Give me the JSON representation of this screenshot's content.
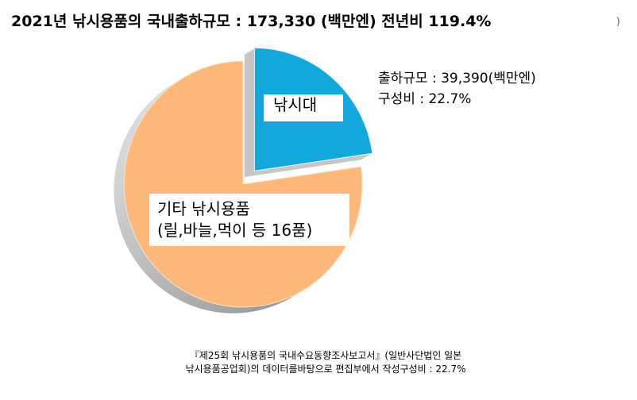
{
  "title": "2021년 낚시용품의 국내출하규모 : 173,330 (백만엔) 전년비 119.4%",
  "edge_mark": ")",
  "annotation": {
    "line1": "출하규모 : 39,390(백만엔)",
    "line2": "구성비 : 22.7%"
  },
  "footnote": {
    "line1": "『제25회  낚시용품의 국내수요동향조사보고서』(일반사단법인 일본",
    "line2": "낚시용품공업회)의 데이터를바탕으로 편집부에서 작성구성비 : 22.7%"
  },
  "colors": {
    "rod": "#12a8dd",
    "other": "#fdb87a",
    "rod_side": "#c6c6c6",
    "other_side": "#a6a6a6"
  },
  "chart_data": {
    "type": "pie",
    "title": "2021년 낚시용품의 국내출하규모 : 173,330 (백만엔) 전년비 119.4%",
    "unit": "백만엔",
    "total": 173330,
    "yoy_percent": 119.4,
    "slices": [
      {
        "label": "낚시대",
        "value": 39390,
        "share_percent": 22.7,
        "color": "#12a8dd",
        "exploded": true
      },
      {
        "label_line1": "기타 낚시용품",
        "label_line2": "(릴,바늘,먹이 등 16품)",
        "value": 133940,
        "share_percent": 77.3,
        "color": "#fdb87a",
        "exploded": false
      }
    ]
  }
}
